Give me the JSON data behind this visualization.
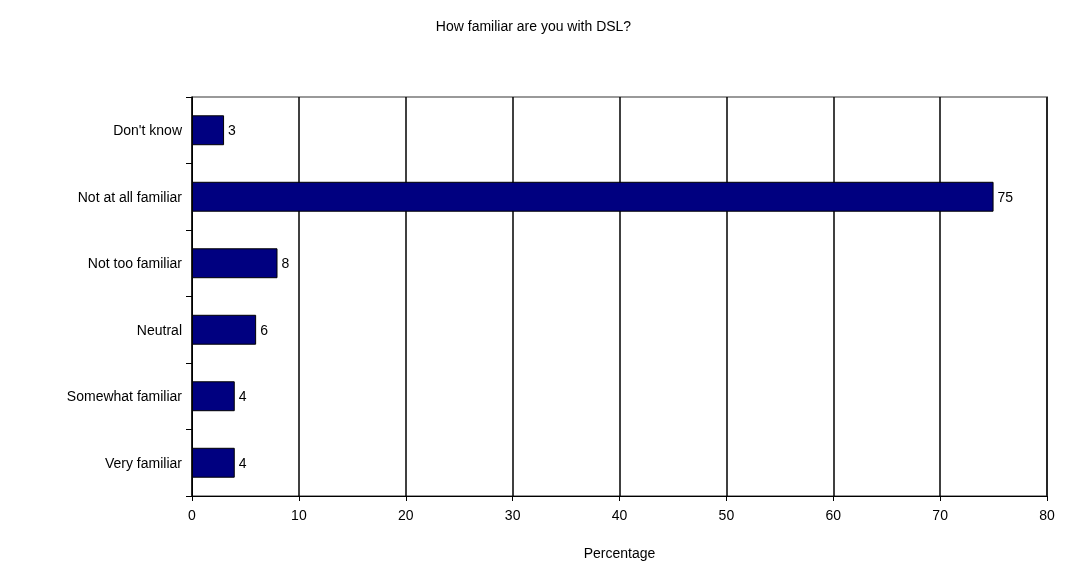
{
  "chart_data": {
    "type": "bar",
    "orientation": "horizontal",
    "title": "How familiar are you with DSL?",
    "xlabel": "Percentage",
    "categories": [
      "Don't know",
      "Not at all familiar",
      "Not too familiar",
      "Neutral",
      "Somewhat familiar",
      "Very familiar"
    ],
    "values": [
      3,
      75,
      8,
      6,
      4,
      4
    ],
    "color": "#000080",
    "xlim": [
      0,
      80
    ],
    "xticks": [
      0,
      10,
      20,
      30,
      40,
      50,
      60,
      70,
      80
    ],
    "grid": "x",
    "data_labels": true
  }
}
